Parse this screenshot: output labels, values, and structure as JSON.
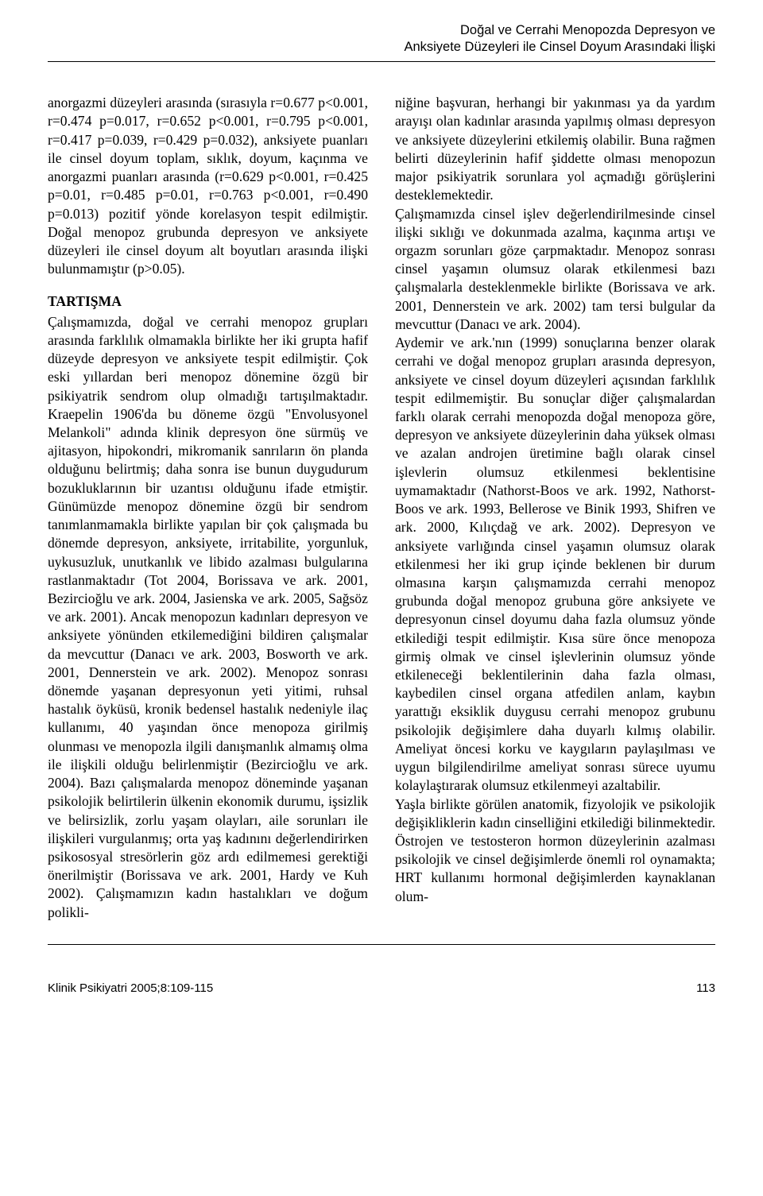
{
  "running_head": {
    "line1": "Doğal ve Cerrahi Menopozda Depresyon ve",
    "line2": "Anksiyete Düzeyleri ile Cinsel Doyum Arasındaki İlişki"
  },
  "left_column": {
    "p1": "anorgazmi düzeyleri arasında (sırasıyla r=0.677 p<0.001, r=0.474 p=0.017, r=0.652 p<0.001, r=0.795 p<0.001, r=0.417 p=0.039, r=0.429 p=0.032), anksiyete puanları ile cinsel doyum toplam, sıklık, doyum, kaçınma ve anorgazmi puanları arasında (r=0.629 p<0.001, r=0.425 p=0.01, r=0.485 p=0.01, r=0.763 p<0.001, r=0.490 p=0.013) pozitif yönde korelasyon tespit edilmiştir. Doğal menopoz grubunda depresyon ve anksiyete düzeyleri ile cinsel doyum alt boyutları arasında ilişki bulunmamıştır (p>0.05).",
    "section_title": "TARTIŞMA",
    "p2": "Çalışmamızda, doğal ve cerrahi menopoz grupları arasında farklılık olmamakla birlikte her iki grupta hafif düzeyde depresyon ve anksiyete tespit edilmiştir. Çok eski yıllardan beri menopoz dönemine özgü bir psikiyatrik sendrom olup olmadığı tartışılmaktadır. Kraepelin 1906'da bu döneme özgü \"Envolusyonel Melankoli\" adında klinik depresyon öne sürmüş ve ajitasyon, hipokondri, mikromanik sanrıların ön planda olduğunu belirtmiş; daha sonra ise bunun duygudurum bozukluklarının bir uzantısı olduğunu ifade etmiştir. Günümüzde menopoz dönemine özgü bir sendrom tanımlanmamakla birlikte yapılan bir çok çalışmada bu dönemde depresyon, anksiyete, irritabilite, yorgunluk, uykusuzluk, unutkanlık ve libido azalması bulgularına rastlanmaktadır (Tot 2004, Borissava ve ark. 2001, Bezircioğlu ve ark. 2004, Jasienska ve ark. 2005, Sağsöz ve ark. 2001). Ancak menopozun kadınları depresyon ve anksiyete yönünden etkilemediğini bildiren çalışmalar da mevcuttur (Danacı ve ark. 2003, Bosworth ve ark. 2001, Dennerstein ve ark. 2002). Menopoz sonrası dönemde yaşanan depresyonun yeti yitimi, ruhsal hastalık öyküsü, kronik bedensel hastalık nedeniyle ilaç kullanımı, 40 yaşından önce menopoza girilmiş olunması ve menopozla ilgili danışmanlık almamış olma ile ilişkili olduğu belirlenmiştir (Bezircioğlu ve ark. 2004). Bazı çalışmalarda menopoz döneminde yaşanan psikolojik belirtilerin ülkenin ekonomik durumu, işsizlik ve belirsizlik, zorlu yaşam olayları, aile sorunları ile ilişkileri vurgulanmış; orta yaş kadınını değerlendirirken psikososyal stresörlerin göz ardı edilmemesi gerektiği önerilmiştir (Borissava ve ark. 2001, Hardy ve Kuh 2002). Çalışmamızın kadın hastalıkları ve doğum polikli-"
  },
  "right_column": {
    "p1": "niğine başvuran, herhangi bir yakınması ya da yardım arayışı olan kadınlar arasında yapılmış olması depresyon ve anksiyete düzeylerini etkilemiş olabilir. Buna rağmen belirti düzeylerinin hafif şiddette olması menopozun major psikiyatrik sorunlara yol açmadığı görüşlerini desteklemektedir.",
    "p2": "Çalışmamızda cinsel işlev değerlendirilmesinde cinsel ilişki sıklığı ve dokunmada azalma, kaçınma artışı ve orgazm sorunları göze çarpmaktadır. Menopoz sonrası cinsel yaşamın olumsuz olarak etkilenmesi bazı çalışmalarla desteklenmekle birlikte (Borissava ve ark. 2001, Dennerstein ve ark. 2002) tam tersi bulgular da mevcuttur (Danacı ve ark. 2004).",
    "p3": "Aydemir ve ark.'nın (1999) sonuçlarına benzer olarak cerrahi ve doğal menopoz grupları arasında depresyon, anksiyete ve cinsel doyum düzeyleri açısından farklılık tespit edilmemiştir. Bu sonuçlar diğer çalışmalardan farklı olarak cerrahi menopozda doğal menopoza göre, depresyon ve anksiyete düzeylerinin daha yüksek olması ve azalan androjen üretimine bağlı olarak cinsel işlevlerin olumsuz etkilenmesi beklentisine uymamaktadır (Nathorst-Boos ve ark. 1992, Nathorst-Boos ve ark. 1993, Bellerose ve Binik 1993, Shifren ve ark. 2000, Kılıçdağ ve ark. 2002). Depresyon ve anksiyete varlığında cinsel yaşamın olumsuz olarak etkilenmesi her iki grup içinde beklenen bir durum olmasına karşın çalışmamızda cerrahi menopoz grubunda doğal menopoz grubuna göre anksiyete ve depresyonun cinsel doyumu daha fazla olumsuz yönde etkilediği tespit edilmiştir. Kısa süre önce menopoza girmiş olmak ve cinsel işlevlerinin olumsuz yönde etkileneceği beklentilerinin daha fazla olması, kaybedilen cinsel organa atfedilen anlam, kaybın yarattığı eksiklik duygusu cerrahi menopoz grubunu psikolojik değişimlere daha duyarlı kılmış olabilir. Ameliyat öncesi korku ve kaygıların paylaşılması ve uygun bilgilendirilme ameliyat sonrası sürece uyumu kolaylaştırarak olumsuz etkilenmeyi azaltabilir.",
    "p4": "Yaşla birlikte görülen anatomik, fizyolojik ve psikolojik değişikliklerin kadın cinselliğini etkilediği bilinmektedir. Östrojen ve testosteron hormon düzeylerinin azalması psikolojik ve cinsel değişimlerde önemli rol oynamakta; HRT kullanımı hormonal değişimlerden kaynaklanan olum-"
  },
  "footer": {
    "journal": "Klinik Psikiyatri 2005;8:109-115",
    "page_number": "113"
  }
}
